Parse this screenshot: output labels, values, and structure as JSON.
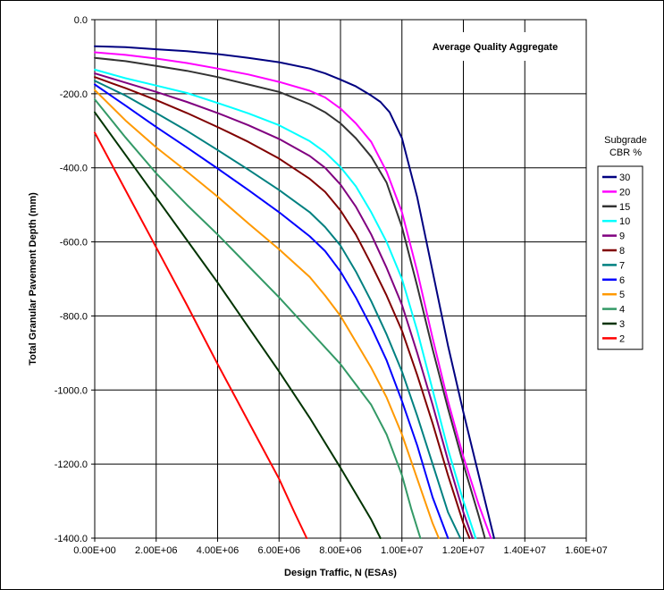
{
  "chart_data": {
    "type": "line",
    "title": "",
    "annotation": "Average Quality Aggregate",
    "xlabel": "Design Traffic, N (ESAs)",
    "ylabel": "Total Granular Pavement Depth (mm)",
    "xlim": [
      0,
      16000000
    ],
    "ylim": [
      -1400,
      0
    ],
    "x_ticks": [
      "0.00E+00",
      "2.00E+06",
      "4.00E+06",
      "6.00E+06",
      "8.00E+06",
      "1.00E+07",
      "1.20E+07",
      "1.40E+07",
      "1.60E+07"
    ],
    "y_ticks": [
      "0.0",
      "-200.0",
      "-400.0",
      "-600.0",
      "-800.0",
      "-1000.0",
      "-1200.0",
      "-1400.0"
    ],
    "grid": true,
    "legend_title": [
      "Subgrade",
      "CBR %"
    ],
    "legend_position": "right",
    "series": [
      {
        "name": "30",
        "color": "#000080",
        "x": [
          0,
          1000000,
          2000000,
          3000000,
          4000000,
          5000000,
          6000000,
          7000000,
          7500000,
          8000000,
          8500000,
          9000000,
          9300000,
          9600000,
          10000000,
          10500000,
          11000000,
          11500000,
          12000000,
          12500000,
          13000000
        ],
        "y": [
          -72,
          -74,
          -80,
          -85,
          -93,
          -103,
          -115,
          -132,
          -145,
          -162,
          -180,
          -205,
          -222,
          -250,
          -320,
          -480,
          -680,
          -880,
          -1060,
          -1230,
          -1400
        ]
      },
      {
        "name": "20",
        "color": "#FF00FF",
        "x": [
          0,
          1000000,
          2000000,
          3000000,
          4000000,
          5000000,
          6000000,
          7000000,
          7500000,
          8000000,
          8500000,
          9000000,
          9500000,
          10000000,
          10500000,
          11000000,
          11500000,
          12000000,
          12500000,
          12900000
        ],
        "y": [
          -88,
          -95,
          -105,
          -117,
          -132,
          -148,
          -168,
          -192,
          -210,
          -240,
          -280,
          -330,
          -410,
          -520,
          -680,
          -860,
          -1030,
          -1180,
          -1310,
          -1400
        ]
      },
      {
        "name": "15",
        "color": "#333333",
        "x": [
          0,
          1000000,
          2000000,
          3000000,
          4000000,
          5000000,
          6000000,
          7000000,
          7500000,
          8000000,
          8500000,
          9000000,
          9500000,
          10000000,
          10500000,
          11000000,
          11500000,
          12000000,
          12500000,
          12700000
        ],
        "y": [
          -103,
          -112,
          -125,
          -138,
          -155,
          -175,
          -195,
          -228,
          -250,
          -280,
          -320,
          -370,
          -440,
          -560,
          -720,
          -890,
          -1050,
          -1200,
          -1340,
          -1400
        ]
      },
      {
        "name": "10",
        "color": "#00FFFF",
        "x": [
          0,
          1000000,
          2000000,
          3000000,
          4000000,
          5000000,
          6000000,
          7000000,
          7500000,
          8000000,
          8500000,
          9000000,
          9500000,
          10000000,
          10500000,
          11000000,
          11500000,
          12000000,
          12400000
        ],
        "y": [
          -135,
          -158,
          -178,
          -198,
          -225,
          -253,
          -285,
          -328,
          -358,
          -398,
          -450,
          -520,
          -600,
          -700,
          -840,
          -1000,
          -1160,
          -1300,
          -1400
        ]
      },
      {
        "name": "9",
        "color": "#800080",
        "x": [
          0,
          1000000,
          2000000,
          3000000,
          4000000,
          5000000,
          6000000,
          7000000,
          7500000,
          8000000,
          8500000,
          9000000,
          9500000,
          10000000,
          10500000,
          11000000,
          11500000,
          12000000,
          12300000
        ],
        "y": [
          -145,
          -170,
          -195,
          -222,
          -252,
          -285,
          -322,
          -368,
          -400,
          -445,
          -505,
          -580,
          -670,
          -770,
          -900,
          -1040,
          -1190,
          -1330,
          -1400
        ]
      },
      {
        "name": "8",
        "color": "#800000",
        "x": [
          0,
          1000000,
          2000000,
          3000000,
          4000000,
          5000000,
          6000000,
          7000000,
          7500000,
          8000000,
          8500000,
          9000000,
          9500000,
          10000000,
          10500000,
          11000000,
          11500000,
          12000000,
          12200000
        ],
        "y": [
          -155,
          -185,
          -217,
          -252,
          -290,
          -330,
          -375,
          -430,
          -465,
          -515,
          -580,
          -660,
          -745,
          -840,
          -960,
          -1090,
          -1230,
          -1360,
          -1400
        ]
      },
      {
        "name": "7",
        "color": "#008080",
        "x": [
          0,
          1000000,
          2000000,
          3000000,
          4000000,
          5000000,
          6000000,
          7000000,
          7500000,
          8000000,
          8500000,
          9000000,
          9500000,
          10000000,
          10500000,
          11000000,
          11500000,
          11900000
        ],
        "y": [
          -165,
          -205,
          -252,
          -300,
          -352,
          -405,
          -460,
          -520,
          -560,
          -610,
          -680,
          -760,
          -850,
          -950,
          -1070,
          -1200,
          -1330,
          -1400
        ]
      },
      {
        "name": "6",
        "color": "#0000FF",
        "x": [
          0,
          1000000,
          2000000,
          3000000,
          4000000,
          5000000,
          6000000,
          7000000,
          7500000,
          8000000,
          8500000,
          9000000,
          9500000,
          10000000,
          10500000,
          11000000,
          11500000
        ],
        "y": [
          -175,
          -232,
          -290,
          -345,
          -402,
          -460,
          -520,
          -585,
          -625,
          -680,
          -750,
          -830,
          -920,
          -1030,
          -1150,
          -1290,
          -1400
        ]
      },
      {
        "name": "5",
        "color": "#FF9900",
        "x": [
          0,
          1000000,
          2000000,
          3000000,
          4000000,
          5000000,
          6000000,
          7000000,
          7500000,
          8000000,
          8500000,
          9000000,
          9500000,
          10000000,
          10500000,
          11000000,
          11200000
        ],
        "y": [
          -190,
          -272,
          -345,
          -410,
          -478,
          -550,
          -620,
          -695,
          -745,
          -800,
          -870,
          -940,
          -1020,
          -1120,
          -1240,
          -1360,
          -1400
        ]
      },
      {
        "name": "4",
        "color": "#339966",
        "x": [
          0,
          1000000,
          2000000,
          3000000,
          4000000,
          5000000,
          6000000,
          7000000,
          8000000,
          8500000,
          9000000,
          9500000,
          10000000,
          10300000,
          10600000
        ],
        "y": [
          -215,
          -318,
          -415,
          -500,
          -580,
          -665,
          -750,
          -840,
          -930,
          -985,
          -1040,
          -1120,
          -1230,
          -1320,
          -1400
        ]
      },
      {
        "name": "3",
        "color": "#003300",
        "x": [
          0,
          1000000,
          2000000,
          3000000,
          4000000,
          5000000,
          6000000,
          7000000,
          8000000,
          8500000,
          9000000,
          9300000
        ],
        "y": [
          -250,
          -365,
          -480,
          -595,
          -710,
          -830,
          -950,
          -1075,
          -1210,
          -1280,
          -1350,
          -1400
        ]
      },
      {
        "name": "2",
        "color": "#FF0000",
        "x": [
          0,
          1000000,
          2000000,
          3000000,
          4000000,
          5000000,
          6000000,
          6500000,
          6900000
        ],
        "y": [
          -305,
          -460,
          -615,
          -770,
          -930,
          -1085,
          -1240,
          -1330,
          -1400
        ]
      }
    ]
  }
}
